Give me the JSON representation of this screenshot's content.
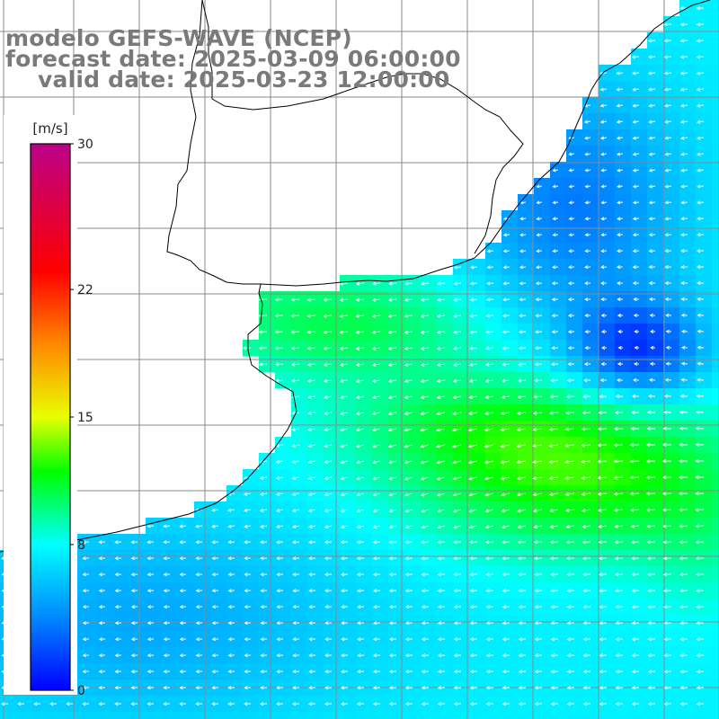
{
  "title": {
    "line1": "modelo GEFS-WAVE (NCEP)",
    "line2": "forecast date: 2025-03-09 06:00:00",
    "line3": "valid date: 2025-03-23 12:00:00"
  },
  "colorbar": {
    "unit": "[m/s]",
    "ticks": [
      {
        "value": 30,
        "label": "30"
      },
      {
        "value": 22,
        "label": "22"
      },
      {
        "value": 15,
        "label": "15"
      },
      {
        "value": 8,
        "label": "8"
      },
      {
        "value": 0,
        "label": "0"
      }
    ],
    "range": [
      0,
      30
    ],
    "stops": [
      {
        "v": 0,
        "color": "#0000ff"
      },
      {
        "v": 4,
        "color": "#0088ff"
      },
      {
        "v": 8,
        "color": "#00ffff"
      },
      {
        "v": 12,
        "color": "#00ff00"
      },
      {
        "v": 15,
        "color": "#e8ff00"
      },
      {
        "v": 19,
        "color": "#ff8800"
      },
      {
        "v": 23,
        "color": "#ff0000"
      },
      {
        "v": 30,
        "color": "#bb0088"
      }
    ]
  },
  "map": {
    "land_color": "#ffffff",
    "grid_color": "#8a8a8a",
    "coast_color": "#000000",
    "arrow_color": "#ffffff"
  }
}
